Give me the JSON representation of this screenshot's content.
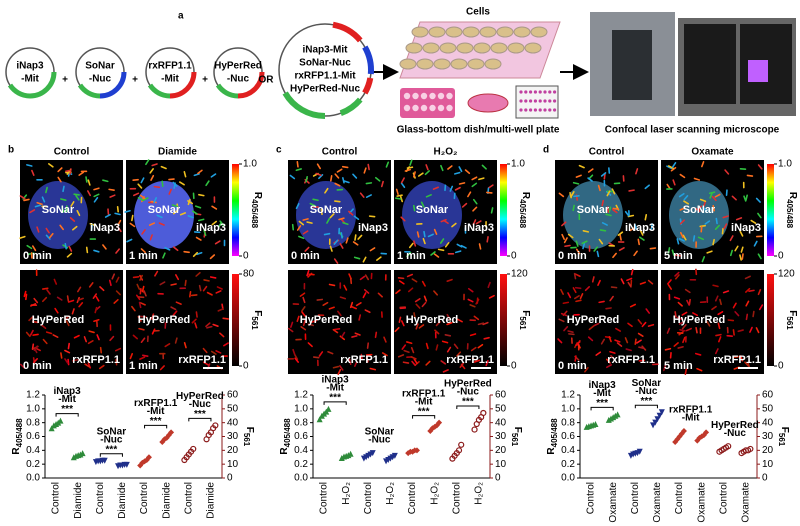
{
  "panel_a": {
    "label": "a",
    "plasmids": [
      {
        "lines": [
          "iNap3",
          "-Mit"
        ],
        "color": "#3ab54a"
      },
      {
        "lines": [
          "SoNar",
          "-Nuc"
        ],
        "color": "#1f3fd0"
      },
      {
        "lines": [
          "rxRFP1.1",
          "-Mit"
        ],
        "color": "#e02020"
      },
      {
        "lines": [
          "HyPerRed",
          "-Nuc"
        ],
        "color": "#e02020"
      }
    ],
    "operators": [
      "+",
      "+",
      "+",
      "OR"
    ],
    "combined": [
      "iNap3-Mit",
      "SoNar-Nuc",
      "rxRFP1.1-Mit",
      "HyPerRed-Nuc"
    ],
    "cells_label": "Cells",
    "dish_label": "Glass-bottom dish/multi-well plate",
    "microscope_label": "Confocal laser scanning microscope"
  },
  "panels": [
    {
      "label": "b",
      "conditions": [
        "Control",
        "Diamide"
      ],
      "top_images": [
        {
          "nuc": "SoNar",
          "mit": "iNap3",
          "time": "0 min"
        },
        {
          "nuc": "SoNar",
          "mit": "iNap3",
          "time": "1 min"
        }
      ],
      "bottom_images": [
        {
          "nuc": "HyPerRed",
          "mit": "rxRFP1.1",
          "time": "0 min"
        },
        {
          "nuc": "HyPerRed",
          "mit": "rxRFP1.1",
          "time": "1 min"
        }
      ],
      "ratio_bar": {
        "ticks": [
          {
            "value": 1,
            "label": "1.0"
          },
          0
        ],
        "label": {
          "main": "R",
          "sub": "405/488"
        }
      },
      "intensity_bar": {
        "ticks": [
          80,
          0
        ],
        "label": {
          "main": "F",
          "sub": "561"
        }
      },
      "chart": {
        "type": "scatter",
        "categories": [
          "Control",
          "Diamide",
          "Control",
          "Diamide",
          "Control",
          "Diamide",
          "Control",
          "Diamide"
        ],
        "ylim": [
          0,
          1.2
        ],
        "yticks": [
          {
            "value": 0,
            "label": "0.0"
          },
          0.2,
          0.4,
          0.6,
          0.8,
          {
            "value": 1,
            "label": "1.0"
          },
          1.2
        ],
        "y2lim": [
          0,
          60
        ],
        "y2ticks": [
          0,
          10,
          20,
          30,
          40,
          50,
          60
        ],
        "ylabel": {
          "main": "R",
          "sub": "405/488"
        },
        "y2label": {
          "main": "F",
          "sub": "561"
        },
        "groups": [
          {
            "values": [
              0.72,
              0.76,
              0.78,
              0.8,
              0.83
            ],
            "color": "#2e8b3a",
            "marker": "triangle",
            "axis": "y"
          },
          {
            "values": [
              0.3,
              0.32,
              0.33,
              0.34,
              0.36
            ],
            "color": "#2e8b3a",
            "marker": "triangle",
            "axis": "y"
          },
          {
            "values": [
              0.23,
              0.24,
              0.24,
              0.25,
              0.25
            ],
            "color": "#1f2f8a",
            "marker": "down-triangle",
            "axis": "y"
          },
          {
            "values": [
              0.17,
              0.18,
              0.18,
              0.19,
              0.19
            ],
            "color": "#1f2f8a",
            "marker": "down-triangle",
            "axis": "y"
          },
          {
            "values": [
              9,
              11,
              12,
              13,
              15
            ],
            "color": "#c0392b",
            "marker": "diamond",
            "axis": "y2"
          },
          {
            "values": [
              26,
              28,
              29,
              31,
              33
            ],
            "color": "#c0392b",
            "marker": "diamond",
            "axis": "y2"
          },
          {
            "values": [
              13,
              15,
              17,
              19,
              21
            ],
            "color": "#8b1a1a",
            "marker": "circle",
            "axis": "y2"
          },
          {
            "values": [
              28,
              31,
              33,
              36,
              38
            ],
            "color": "#8b1a1a",
            "marker": "circle",
            "axis": "y2"
          }
        ],
        "annotations": [
          {
            "lines": [
              "iNap3",
              "-Mit"
            ],
            "stars": "***"
          },
          {
            "lines": [
              "SoNar",
              "-Nuc"
            ],
            "stars": "***"
          },
          {
            "lines": [
              "rxRFP1.1",
              "-Mit"
            ],
            "stars": "***"
          },
          {
            "lines": [
              "HyPerRed",
              "-Nuc"
            ],
            "stars": "***"
          }
        ]
      }
    },
    {
      "label": "c",
      "conditions": [
        "Control",
        "H₂O₂"
      ],
      "top_images": [
        {
          "nuc": "SoNar",
          "mit": "iNap3",
          "time": "0 min"
        },
        {
          "nuc": "SoNar",
          "mit": "iNap3",
          "time": "1 min"
        }
      ],
      "bottom_images": [
        {
          "nuc": "HyPerRed",
          "mit": "rxRFP1.1"
        },
        {
          "nuc": "HyPerRed",
          "mit": "rxRFP1.1"
        }
      ],
      "ratio_bar": {
        "ticks": [
          {
            "value": 1,
            "label": "1.0"
          },
          0
        ],
        "label": {
          "main": "R",
          "sub": "405/488"
        }
      },
      "intensity_bar": {
        "ticks": [
          120,
          0
        ],
        "label": {
          "main": "F",
          "sub": "561"
        }
      },
      "chart": {
        "type": "scatter",
        "categories": [
          "Control",
          "H₂O₂",
          "Control",
          "H₂O₂",
          "Control",
          "H₂O₂",
          "Control",
          "H₂O₂"
        ],
        "ylim": [
          0,
          1.2
        ],
        "yticks": [
          {
            "value": 0,
            "label": "0.0"
          },
          0.2,
          0.4,
          0.6,
          0.8,
          {
            "value": 1,
            "label": "1.0"
          },
          1.2
        ],
        "y2lim": [
          0,
          60
        ],
        "y2ticks": [
          0,
          10,
          20,
          30,
          40,
          50,
          60
        ],
        "ylabel": {
          "main": "R",
          "sub": "405/488"
        },
        "y2label": {
          "main": "F",
          "sub": "561"
        },
        "groups": [
          {
            "values": [
              0.85,
              0.9,
              0.93,
              0.96,
              1.0
            ],
            "color": "#2e8b3a",
            "marker": "triangle",
            "axis": "y"
          },
          {
            "values": [
              0.29,
              0.31,
              0.32,
              0.33,
              0.35
            ],
            "color": "#2e8b3a",
            "marker": "triangle",
            "axis": "y"
          },
          {
            "values": [
              0.28,
              0.3,
              0.32,
              0.34,
              0.36
            ],
            "color": "#1f2f8a",
            "marker": "down-triangle",
            "axis": "y"
          },
          {
            "values": [
              0.24,
              0.26,
              0.28,
              0.3,
              0.32
            ],
            "color": "#1f2f8a",
            "marker": "down-triangle",
            "axis": "y"
          },
          {
            "values": [
              18,
              19,
              19,
              20,
              20
            ],
            "color": "#c0392b",
            "marker": "diamond",
            "axis": "y2"
          },
          {
            "values": [
              34,
              36,
              37,
              38,
              40
            ],
            "color": "#c0392b",
            "marker": "diamond",
            "axis": "y2"
          },
          {
            "values": [
              14,
              16,
              18,
              20,
              24
            ],
            "color": "#8b1a1a",
            "marker": "circle",
            "axis": "y2"
          },
          {
            "values": [
              35,
              39,
              42,
              44,
              47
            ],
            "color": "#8b1a1a",
            "marker": "circle",
            "axis": "y2"
          }
        ],
        "annotations": [
          {
            "lines": [
              "iNap3",
              "-Mit"
            ],
            "stars": "***"
          },
          {
            "lines": [
              "SoNar",
              "-Nuc"
            ]
          },
          {
            "lines": [
              "rxRFP1.1",
              "-Mit"
            ],
            "stars": "***"
          },
          {
            "lines": [
              "HyPerRed",
              "-Nuc"
            ],
            "stars": "***"
          }
        ]
      }
    },
    {
      "label": "d",
      "conditions": [
        "Control",
        "Oxamate"
      ],
      "top_images": [
        {
          "nuc": "SoNar",
          "mit": "iNap3",
          "time": "0 min"
        },
        {
          "nuc": "SoNar",
          "mit": "iNap3",
          "time": "5 min"
        }
      ],
      "bottom_images": [
        {
          "nuc": "HyPerRed",
          "mit": "rxRFP1.1",
          "time": "0 min"
        },
        {
          "nuc": "HyPerRed",
          "mit": "rxRFP1.1",
          "time": "5 min"
        }
      ],
      "ratio_bar": {
        "ticks": [
          {
            "value": 1,
            "label": "1.0"
          },
          0
        ],
        "label": {
          "main": "R",
          "sub": "405/488"
        }
      },
      "intensity_bar": {
        "ticks": [
          120,
          0
        ],
        "label": {
          "main": "F",
          "sub": "561"
        }
      },
      "chart": {
        "type": "scatter",
        "categories": [
          "Control",
          "Oxamate",
          "Control",
          "Oxamate",
          "Control",
          "Oxamate",
          "Control",
          "Oxamate"
        ],
        "ylim": [
          0,
          1.2
        ],
        "yticks": [
          {
            "value": 0,
            "label": "0.0"
          },
          0.2,
          0.4,
          0.6,
          0.8,
          {
            "value": 1,
            "label": "1.0"
          },
          1.2
        ],
        "y2lim": [
          0,
          60
        ],
        "y2ticks": [
          0,
          10,
          20,
          30,
          40,
          50,
          60
        ],
        "ylabel": {
          "main": "R",
          "sub": "405/488"
        },
        "y2label": {
          "main": "F",
          "sub": "561"
        },
        "groups": [
          {
            "values": [
              0.74,
              0.75,
              0.76,
              0.77,
              0.78
            ],
            "color": "#2e8b3a",
            "marker": "triangle",
            "axis": "y"
          },
          {
            "values": [
              0.84,
              0.86,
              0.88,
              0.9,
              0.92
            ],
            "color": "#2e8b3a",
            "marker": "triangle",
            "axis": "y"
          },
          {
            "values": [
              0.32,
              0.34,
              0.35,
              0.36,
              0.38
            ],
            "color": "#1f2f8a",
            "marker": "down-triangle",
            "axis": "y"
          },
          {
            "values": [
              0.76,
              0.8,
              0.85,
              0.9,
              0.95
            ],
            "color": "#1f2f8a",
            "marker": "down-triangle",
            "axis": "y"
          },
          {
            "values": [
              26,
              28,
              30,
              32,
              34
            ],
            "color": "#c0392b",
            "marker": "diamond",
            "axis": "y2"
          },
          {
            "values": [
              27,
              29,
              30,
              31,
              33
            ],
            "color": "#c0392b",
            "marker": "diamond",
            "axis": "y2"
          },
          {
            "values": [
              19,
              20,
              21,
              22,
              23
            ],
            "color": "#8b1a1a",
            "marker": "circle",
            "axis": "y2"
          },
          {
            "values": [
              18,
              19,
              20,
              20,
              21
            ],
            "color": "#8b1a1a",
            "marker": "circle",
            "axis": "y2"
          }
        ],
        "annotations": [
          {
            "lines": [
              "iNap3",
              "-Mit"
            ],
            "stars": "***"
          },
          {
            "lines": [
              "SoNar",
              "-Nuc"
            ],
            "stars": "***"
          },
          {
            "lines": [
              "rxRFP1.1",
              "-Mit"
            ]
          },
          {
            "lines": [
              "HyPerRed",
              "-Nuc"
            ]
          }
        ]
      }
    }
  ]
}
